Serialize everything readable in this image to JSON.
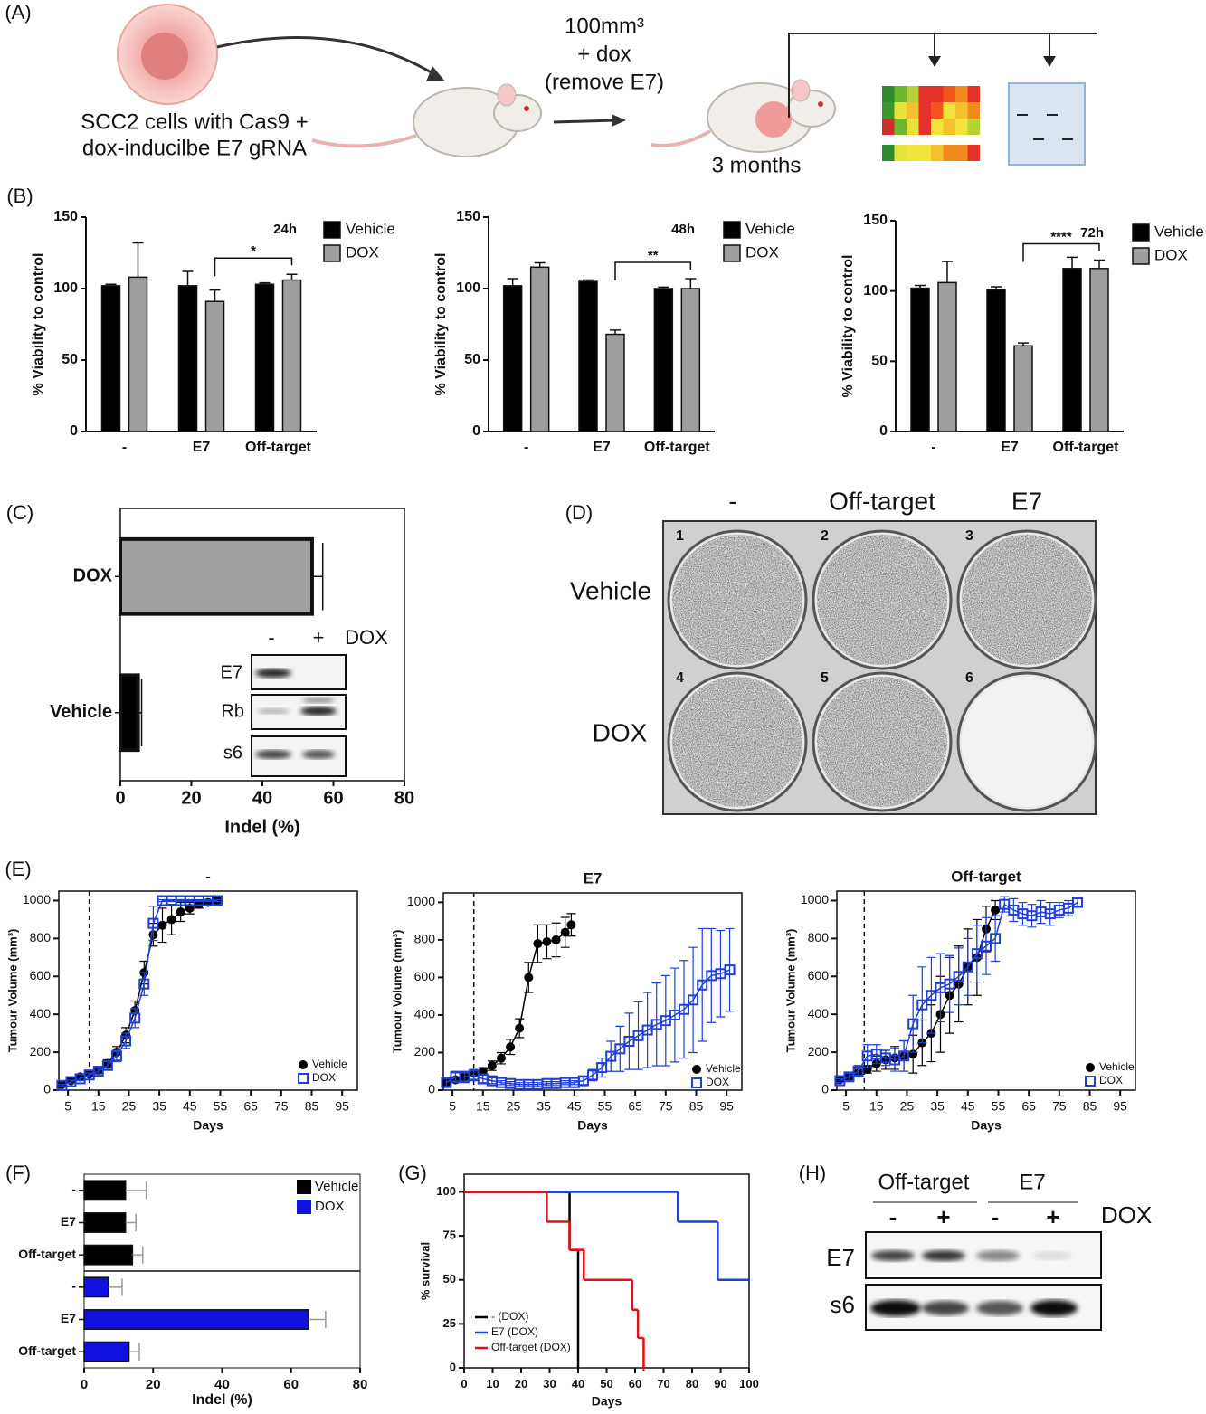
{
  "panel_labels": [
    "(A)",
    "(B)",
    "(C)",
    "(D)",
    "(E)",
    "(F)",
    "(G)",
    "(H)"
  ],
  "schematic": {
    "cells": [
      "SCC2 cells with Cas9 +",
      "dox-inducilbe E7 gRNA"
    ],
    "treatment": [
      "100mm³",
      "+ dox",
      "(remove E7)"
    ],
    "duration": "3 months"
  },
  "chart_data": [
    {
      "type": "bar",
      "annotation": "24h",
      "significance": "*",
      "ylabel": "% Viability to control",
      "categories": [
        "-",
        "E7",
        "Off-target"
      ],
      "series": [
        {
          "name": "Vehicle",
          "color": "#000000",
          "values": [
            102,
            102,
            103
          ],
          "errors": [
            1,
            10,
            1
          ]
        },
        {
          "name": "DOX",
          "color": "#9e9e9e",
          "values": [
            108,
            91,
            106
          ],
          "errors": [
            24,
            8,
            4
          ]
        }
      ],
      "ylim": [
        0,
        150
      ],
      "yticks": [
        0,
        50,
        100,
        150
      ]
    },
    {
      "type": "bar",
      "annotation": "48h",
      "significance": "**",
      "ylabel": "% Viability to control",
      "categories": [
        "-",
        "E7",
        "Off-target"
      ],
      "series": [
        {
          "name": "Vehicle",
          "color": "#000000",
          "values": [
            102,
            105,
            100
          ],
          "errors": [
            5,
            1,
            1
          ]
        },
        {
          "name": "DOX",
          "color": "#9e9e9e",
          "values": [
            115,
            68,
            100
          ],
          "errors": [
            3,
            3,
            7
          ]
        }
      ],
      "ylim": [
        0,
        150
      ],
      "yticks": [
        0,
        50,
        100,
        150
      ]
    },
    {
      "type": "bar",
      "annotation": "72h",
      "significance": "****",
      "ylabel": "% Viability to control",
      "categories": [
        "-",
        "E7",
        "Off-target"
      ],
      "series": [
        {
          "name": "Vehicle",
          "color": "#000000",
          "values": [
            102,
            101,
            116
          ],
          "errors": [
            2,
            2,
            8
          ]
        },
        {
          "name": "DOX",
          "color": "#9e9e9e",
          "values": [
            106,
            61,
            116
          ],
          "errors": [
            15,
            2,
            6
          ]
        }
      ],
      "ylim": [
        0,
        150
      ],
      "yticks": [
        0,
        50,
        100,
        150
      ]
    },
    {
      "type": "barh",
      "xlabel": "Indel (%)",
      "categories": [
        "DOX",
        "Vehicle"
      ],
      "values": [
        54,
        5
      ],
      "errors": [
        3,
        1
      ],
      "colors": [
        "#a0a0a0",
        "#000000"
      ],
      "xlim": [
        0,
        80
      ],
      "xticks": [
        0,
        20,
        40,
        60,
        80
      ]
    },
    {
      "type": "line",
      "title": "-",
      "xlabel": "Days",
      "ylabel": "Tumour Volume (mm³)",
      "vline": 12,
      "series": [
        {
          "name": "Vehicle",
          "color": "#000000",
          "marker": "circle",
          "x": [
            3,
            6,
            9,
            12,
            15,
            18,
            21,
            24,
            27,
            30,
            33,
            36,
            39,
            42,
            45,
            48,
            51,
            54
          ],
          "values": [
            30,
            50,
            70,
            85,
            105,
            140,
            200,
            290,
            420,
            620,
            820,
            870,
            900,
            940,
            960,
            980,
            990,
            1000
          ],
          "errors": [
            5,
            8,
            10,
            10,
            15,
            20,
            30,
            40,
            50,
            60,
            60,
            90,
            80,
            50,
            30,
            20,
            10,
            5
          ]
        },
        {
          "name": "DOX",
          "color": "#1f3fd6",
          "marker": "square",
          "x": [
            3,
            6,
            9,
            12,
            15,
            18,
            21,
            24,
            27,
            30,
            33,
            36,
            39,
            42,
            45,
            48,
            51,
            54
          ],
          "values": [
            25,
            45,
            60,
            80,
            100,
            130,
            180,
            260,
            380,
            560,
            880,
            1000,
            1000,
            1000,
            1000,
            1000,
            1000,
            1000
          ],
          "errors": [
            5,
            8,
            10,
            10,
            15,
            20,
            30,
            40,
            50,
            60,
            90,
            5,
            5,
            5,
            5,
            5,
            5,
            5
          ]
        }
      ],
      "xlim": [
        2,
        100
      ],
      "xticks": [
        5,
        15,
        25,
        35,
        45,
        55,
        65,
        75,
        85,
        95
      ],
      "ylim": [
        0,
        1050
      ],
      "yticks": [
        0,
        200,
        400,
        600,
        800,
        1000
      ]
    },
    {
      "type": "line",
      "title": "E7",
      "xlabel": "Days",
      "ylabel": "Tumour Volume (mm³)",
      "vline": 12,
      "series": [
        {
          "name": "Vehicle",
          "color": "#000000",
          "marker": "circle",
          "x": [
            3,
            6,
            9,
            12,
            15,
            18,
            21,
            24,
            27,
            30,
            33,
            36,
            39,
            42,
            44
          ],
          "values": [
            40,
            55,
            70,
            90,
            100,
            130,
            170,
            230,
            330,
            600,
            780,
            790,
            800,
            840,
            880
          ],
          "errors": [
            10,
            10,
            15,
            15,
            20,
            25,
            30,
            40,
            50,
            80,
            100,
            90,
            90,
            80,
            60
          ]
        },
        {
          "name": "DOX",
          "color": "#1f3fd6",
          "marker": "square",
          "x": [
            3,
            6,
            9,
            12,
            15,
            18,
            21,
            24,
            27,
            30,
            33,
            36,
            39,
            42,
            45,
            48,
            51,
            54,
            57,
            60,
            63,
            66,
            69,
            72,
            75,
            78,
            81,
            84,
            87,
            90,
            93,
            96
          ],
          "values": [
            40,
            70,
            70,
            80,
            60,
            50,
            40,
            35,
            30,
            30,
            30,
            35,
            35,
            40,
            40,
            50,
            80,
            120,
            180,
            220,
            260,
            290,
            320,
            350,
            370,
            400,
            430,
            480,
            560,
            610,
            620,
            640
          ],
          "errors": [
            20,
            30,
            30,
            30,
            20,
            15,
            10,
            10,
            10,
            10,
            10,
            10,
            10,
            10,
            10,
            20,
            30,
            50,
            80,
            120,
            150,
            180,
            200,
            220,
            240,
            250,
            260,
            280,
            300,
            250,
            230,
            220
          ]
        }
      ],
      "xlim": [
        2,
        100
      ],
      "xticks": [
        5,
        15,
        25,
        35,
        45,
        55,
        65,
        75,
        85,
        95
      ],
      "ylim": [
        0,
        1050
      ],
      "yticks": [
        0,
        200,
        400,
        600,
        800,
        1000
      ]
    },
    {
      "type": "line",
      "title": "Off-target",
      "xlabel": "Days",
      "ylabel": "Tumour Volume (mm³)",
      "vline": 11,
      "series": [
        {
          "name": "Vehicle",
          "color": "#000000",
          "marker": "circle",
          "x": [
            3,
            6,
            9,
            12,
            15,
            18,
            21,
            24,
            27,
            30,
            33,
            36,
            39,
            42,
            45,
            48,
            51,
            54
          ],
          "values": [
            55,
            70,
            90,
            110,
            140,
            160,
            170,
            180,
            190,
            250,
            300,
            400,
            500,
            560,
            650,
            700,
            850,
            950
          ],
          "errors": [
            10,
            15,
            20,
            20,
            40,
            50,
            60,
            80,
            100,
            120,
            150,
            200,
            200,
            200,
            200,
            200,
            120,
            50
          ]
        },
        {
          "name": "DOX",
          "color": "#1f3fd6",
          "marker": "square",
          "x": [
            3,
            6,
            9,
            12,
            15,
            18,
            21,
            24,
            27,
            30,
            33,
            36,
            39,
            42,
            45,
            48,
            51,
            54,
            57,
            60,
            63,
            66,
            69,
            72,
            75,
            78,
            81
          ],
          "values": [
            50,
            70,
            100,
            180,
            190,
            170,
            160,
            180,
            350,
            450,
            500,
            540,
            560,
            600,
            650,
            720,
            760,
            800,
            980,
            950,
            930,
            920,
            940,
            930,
            950,
            960,
            990
          ],
          "errors": [
            10,
            20,
            30,
            60,
            50,
            40,
            60,
            80,
            150,
            200,
            200,
            180,
            150,
            150,
            150,
            150,
            150,
            120,
            40,
            60,
            60,
            60,
            60,
            60,
            40,
            40,
            20
          ]
        }
      ],
      "xlim": [
        2,
        100
      ],
      "xticks": [
        5,
        15,
        25,
        35,
        45,
        55,
        65,
        75,
        85,
        95
      ],
      "ylim": [
        0,
        1050
      ],
      "yticks": [
        0,
        200,
        400,
        600,
        800,
        1000
      ]
    },
    {
      "type": "barh",
      "xlabel": "Indel (%)",
      "categories": [
        "-",
        "E7",
        "Off-target",
        "-",
        "E7",
        "Off-target"
      ],
      "series": [
        {
          "name": "Vehicle",
          "color": "#000000",
          "values": [
            12,
            12,
            14,
            null,
            null,
            null
          ],
          "errors": [
            6,
            3,
            3,
            null,
            null,
            null
          ]
        },
        {
          "name": "DOX",
          "color": "#1010e0",
          "values": [
            null,
            null,
            null,
            7,
            65,
            13
          ],
          "errors": [
            null,
            null,
            null,
            4,
            5,
            3
          ]
        }
      ],
      "xlim": [
        0,
        80
      ],
      "xticks": [
        0,
        20,
        40,
        60,
        80
      ]
    },
    {
      "type": "step",
      "xlabel": "Days",
      "ylabel": "% survival",
      "series": [
        {
          "name": "- (DOX)",
          "color": "#000000",
          "x": [
            0,
            37,
            40
          ],
          "values": [
            100,
            67,
            0
          ]
        },
        {
          "name": "E7 (DOX)",
          "color": "#1f3fd6",
          "x": [
            0,
            75,
            89,
            100
          ],
          "values": [
            100,
            83,
            50,
            50
          ]
        },
        {
          "name": "Off-target (DOX)",
          "color": "#e01010",
          "x": [
            0,
            29,
            37,
            42,
            59,
            61,
            63
          ],
          "values": [
            100,
            83,
            67,
            50,
            33,
            17,
            0
          ]
        }
      ],
      "xlim": [
        0,
        100
      ],
      "xticks": [
        0,
        10,
        20,
        30,
        40,
        50,
        60,
        70,
        80,
        90,
        100
      ],
      "ylim": [
        0,
        110
      ],
      "yticks": [
        0,
        25,
        50,
        75,
        100
      ]
    }
  ],
  "inset_blot": {
    "lanes": [
      "-",
      "+"
    ],
    "condition": "DOX",
    "rows": [
      "E7",
      "Rb",
      "s6"
    ]
  },
  "plates": {
    "columns": [
      "-",
      "Off-target",
      "E7"
    ],
    "rows": [
      "Vehicle",
      "DOX"
    ],
    "wells": [
      "1",
      "2",
      "3",
      "4",
      "5",
      "6"
    ]
  },
  "blot": {
    "groups": [
      "Off-target",
      "E7"
    ],
    "lanes": [
      "-",
      "+",
      "-",
      "+"
    ],
    "condition": "DOX",
    "rows": [
      "E7",
      "s6"
    ]
  }
}
